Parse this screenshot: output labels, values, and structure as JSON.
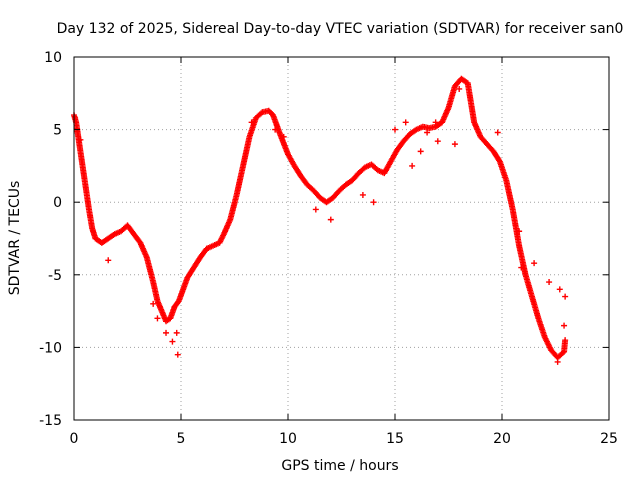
{
  "chart_data": {
    "type": "scatter",
    "title": "Day 132 of 2025, Sidereal Day-to-day VTEC variation (SDTVAR) for receiver san0",
    "xlabel": "GPS time / hours",
    "ylabel": "SDTVAR / TECUs",
    "xlim": [
      0,
      25
    ],
    "ylim": [
      -15,
      10
    ],
    "xticks": [
      "0",
      "5",
      "10",
      "15",
      "20",
      "25"
    ],
    "yticks": [
      "-15",
      "-10",
      "-5",
      "0",
      "5",
      "10"
    ],
    "grid": true,
    "marker": "plus",
    "series": [
      {
        "name": "SDTVAR",
        "color": "#ff0000",
        "trace": [
          [
            0.0,
            6.0
          ],
          [
            0.1,
            5.5
          ],
          [
            0.25,
            4.0
          ],
          [
            0.4,
            2.5
          ],
          [
            0.55,
            1.0
          ],
          [
            0.7,
            -0.5
          ],
          [
            0.85,
            -1.8
          ],
          [
            1.0,
            -2.5
          ],
          [
            1.3,
            -2.8
          ],
          [
            1.6,
            -2.5
          ],
          [
            1.9,
            -2.2
          ],
          [
            2.2,
            -2.0
          ],
          [
            2.5,
            -1.6
          ],
          [
            2.8,
            -2.2
          ],
          [
            3.1,
            -2.8
          ],
          [
            3.4,
            -3.8
          ],
          [
            3.7,
            -5.5
          ],
          [
            3.9,
            -6.8
          ],
          [
            4.1,
            -7.5
          ],
          [
            4.3,
            -8.2
          ],
          [
            4.5,
            -8.0
          ],
          [
            4.7,
            -7.2
          ],
          [
            4.9,
            -6.8
          ],
          [
            5.1,
            -6.0
          ],
          [
            5.3,
            -5.2
          ],
          [
            5.6,
            -4.5
          ],
          [
            5.9,
            -3.8
          ],
          [
            6.2,
            -3.2
          ],
          [
            6.5,
            -3.0
          ],
          [
            6.8,
            -2.8
          ],
          [
            7.0,
            -2.2
          ],
          [
            7.3,
            -1.2
          ],
          [
            7.6,
            0.5
          ],
          [
            7.9,
            2.5
          ],
          [
            8.2,
            4.5
          ],
          [
            8.5,
            5.8
          ],
          [
            8.8,
            6.2
          ],
          [
            9.1,
            6.3
          ],
          [
            9.3,
            6.0
          ],
          [
            9.6,
            4.8
          ],
          [
            10.0,
            3.3
          ],
          [
            10.3,
            2.5
          ],
          [
            10.6,
            1.8
          ],
          [
            10.9,
            1.2
          ],
          [
            11.2,
            0.8
          ],
          [
            11.5,
            0.3
          ],
          [
            11.8,
            0.0
          ],
          [
            12.1,
            0.3
          ],
          [
            12.4,
            0.8
          ],
          [
            12.7,
            1.2
          ],
          [
            13.0,
            1.5
          ],
          [
            13.3,
            2.0
          ],
          [
            13.6,
            2.4
          ],
          [
            13.9,
            2.6
          ],
          [
            14.2,
            2.2
          ],
          [
            14.5,
            2.0
          ],
          [
            14.8,
            2.8
          ],
          [
            15.1,
            3.6
          ],
          [
            15.4,
            4.2
          ],
          [
            15.7,
            4.7
          ],
          [
            16.0,
            5.0
          ],
          [
            16.3,
            5.2
          ],
          [
            16.6,
            5.1
          ],
          [
            16.9,
            5.2
          ],
          [
            17.2,
            5.5
          ],
          [
            17.5,
            6.5
          ],
          [
            17.8,
            8.0
          ],
          [
            18.1,
            8.5
          ],
          [
            18.4,
            8.2
          ],
          [
            18.7,
            5.5
          ],
          [
            19.0,
            4.5
          ],
          [
            19.3,
            4.0
          ],
          [
            19.6,
            3.5
          ],
          [
            19.9,
            2.8
          ],
          [
            20.2,
            1.5
          ],
          [
            20.5,
            -0.5
          ],
          [
            20.8,
            -3.0
          ],
          [
            21.1,
            -5.0
          ],
          [
            21.4,
            -6.5
          ],
          [
            21.7,
            -8.0
          ],
          [
            22.0,
            -9.3
          ],
          [
            22.3,
            -10.2
          ],
          [
            22.6,
            -10.7
          ],
          [
            22.9,
            -10.3
          ],
          [
            22.95,
            -9.5
          ]
        ],
        "points": [
          [
            0.05,
            5.8
          ],
          [
            0.15,
            5.0
          ],
          [
            0.3,
            4.3
          ],
          [
            4.3,
            -9.0
          ],
          [
            4.6,
            -9.6
          ],
          [
            4.8,
            -9.0
          ],
          [
            4.85,
            -10.5
          ],
          [
            3.9,
            -8.0
          ],
          [
            3.7,
            -7.0
          ],
          [
            1.6,
            -4.0
          ],
          [
            8.3,
            5.5
          ],
          [
            9.4,
            5.0
          ],
          [
            9.8,
            4.5
          ],
          [
            11.3,
            -0.5
          ],
          [
            12.0,
            -1.2
          ],
          [
            14.0,
            0.0
          ],
          [
            15.0,
            5.0
          ],
          [
            16.2,
            3.5
          ],
          [
            16.9,
            5.5
          ],
          [
            17.0,
            4.2
          ],
          [
            17.8,
            4.0
          ],
          [
            16.5,
            4.8
          ],
          [
            20.8,
            -2.0
          ],
          [
            20.9,
            -4.5
          ],
          [
            21.5,
            -4.2
          ],
          [
            22.2,
            -5.5
          ],
          [
            22.7,
            -6.0
          ],
          [
            22.95,
            -6.5
          ],
          [
            22.6,
            -11.0
          ],
          [
            22.9,
            -8.5
          ],
          [
            15.5,
            5.5
          ],
          [
            15.8,
            2.5
          ],
          [
            13.5,
            0.5
          ],
          [
            19.8,
            4.8
          ],
          [
            18.0,
            7.8
          ]
        ]
      }
    ]
  }
}
